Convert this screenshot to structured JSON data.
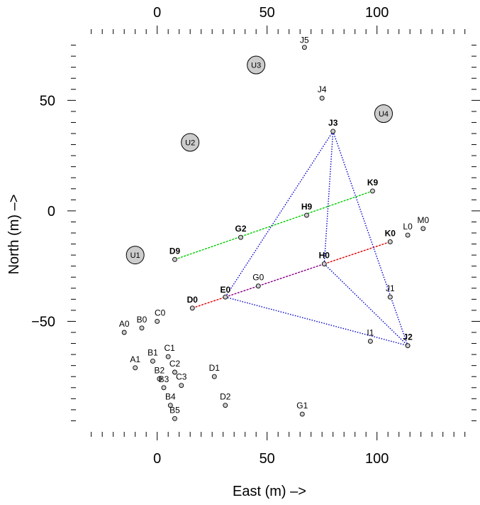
{
  "chart_data": {
    "type": "scatter",
    "xlabel": "East (m) –>",
    "ylabel": "North (m) –>",
    "xlim": [
      -37,
      143
    ],
    "ylim": [
      -100,
      80
    ],
    "xticks": [
      0,
      50,
      100
    ],
    "yticks": [
      -50,
      0,
      50
    ],
    "xticks_labels": [
      "0",
      "50",
      "100"
    ],
    "yticks_labels": [
      "−50",
      "0",
      "50"
    ],
    "grid": false,
    "sites": [
      {
        "name": "J5",
        "x": 67,
        "y": 74,
        "bold": false
      },
      {
        "name": "J4",
        "x": 75,
        "y": 51,
        "bold": false
      },
      {
        "name": "J3",
        "x": 80,
        "y": 36,
        "bold": true
      },
      {
        "name": "K9",
        "x": 98,
        "y": 9,
        "bold": true
      },
      {
        "name": "H9",
        "x": 68,
        "y": -2,
        "bold": true
      },
      {
        "name": "G2",
        "x": 38,
        "y": -12,
        "bold": true
      },
      {
        "name": "D9",
        "x": 8,
        "y": -22,
        "bold": true
      },
      {
        "name": "K0",
        "x": 106,
        "y": -14,
        "bold": true
      },
      {
        "name": "L0",
        "x": 114,
        "y": -11,
        "bold": false
      },
      {
        "name": "M0",
        "x": 121,
        "y": -8,
        "bold": false
      },
      {
        "name": "H0",
        "x": 76,
        "y": -24,
        "bold": true
      },
      {
        "name": "G0",
        "x": 46,
        "y": -34,
        "bold": false
      },
      {
        "name": "E0",
        "x": 31,
        "y": -39,
        "bold": true
      },
      {
        "name": "D0",
        "x": 16,
        "y": -44,
        "bold": true
      },
      {
        "name": "J1",
        "x": 106,
        "y": -39,
        "bold": false
      },
      {
        "name": "I1",
        "x": 97,
        "y": -59,
        "bold": false
      },
      {
        "name": "J2",
        "x": 114,
        "y": -61,
        "bold": true
      },
      {
        "name": "A0",
        "x": -15,
        "y": -55,
        "bold": false
      },
      {
        "name": "B0",
        "x": -7,
        "y": -53,
        "bold": false
      },
      {
        "name": "C0",
        "x": 0,
        "y": -50,
        "bold": false
      },
      {
        "name": "A1",
        "x": -10,
        "y": -71,
        "bold": false
      },
      {
        "name": "B1",
        "x": -2,
        "y": -68,
        "bold": false
      },
      {
        "name": "C1",
        "x": 5,
        "y": -66,
        "bold": false
      },
      {
        "name": "B2",
        "x": 1,
        "y": -76,
        "bold": false
      },
      {
        "name": "C2",
        "x": 8,
        "y": -73,
        "bold": false
      },
      {
        "name": "B3",
        "x": 3,
        "y": -80,
        "bold": false
      },
      {
        "name": "C3",
        "x": 11,
        "y": -79,
        "bold": false
      },
      {
        "name": "D1",
        "x": 26,
        "y": -75,
        "bold": false
      },
      {
        "name": "B4",
        "x": 6,
        "y": -88,
        "bold": false
      },
      {
        "name": "D2",
        "x": 31,
        "y": -88,
        "bold": false
      },
      {
        "name": "B5",
        "x": 8,
        "y": -94,
        "bold": false
      },
      {
        "name": "G1",
        "x": 66,
        "y": -92,
        "bold": false
      }
    ],
    "hubs": [
      {
        "name": "U1",
        "x": -10,
        "y": -20
      },
      {
        "name": "U2",
        "x": 15,
        "y": 31
      },
      {
        "name": "U3",
        "x": 45,
        "y": 66
      },
      {
        "name": "U4",
        "x": 103,
        "y": 44
      }
    ],
    "series": [
      {
        "from": "D9",
        "to": "K9",
        "color": "#00cc00",
        "style": "dashed"
      },
      {
        "from": "D0",
        "to": "E0",
        "color": "#dd0000",
        "style": "dashed"
      },
      {
        "from": "E0",
        "to": "H0",
        "color": "#880088",
        "style": "dashed"
      },
      {
        "from": "H0",
        "to": "K0",
        "color": "#dd0000",
        "style": "dashed"
      },
      {
        "from": "J3",
        "to": "E0",
        "color": "#0000cc",
        "style": "dotted"
      },
      {
        "from": "J3",
        "to": "H0",
        "color": "#0000cc",
        "style": "dotted"
      },
      {
        "from": "J3",
        "to": "J2",
        "color": "#0000cc",
        "style": "dotted"
      },
      {
        "from": "E0",
        "to": "J2",
        "color": "#0000cc",
        "style": "dotted"
      },
      {
        "from": "H0",
        "to": "J2",
        "color": "#0000cc",
        "style": "dotted"
      }
    ],
    "marker_fill": "#cccccc",
    "hub_fill": "#cccccc"
  }
}
